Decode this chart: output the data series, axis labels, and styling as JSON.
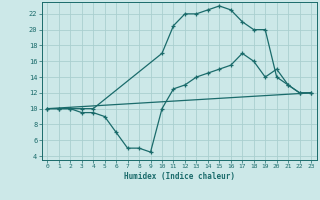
{
  "title": "",
  "xlabel": "Humidex (Indice chaleur)",
  "bg_color": "#cce8e8",
  "grid_color": "#aacfcf",
  "line_color": "#1a6b6b",
  "xlim": [
    -0.5,
    23.5
  ],
  "ylim": [
    3.5,
    23.5
  ],
  "xticks": [
    0,
    1,
    2,
    3,
    4,
    5,
    6,
    7,
    8,
    9,
    10,
    11,
    12,
    13,
    14,
    15,
    16,
    17,
    18,
    19,
    20,
    21,
    22,
    23
  ],
  "yticks": [
    4,
    6,
    8,
    10,
    12,
    14,
    16,
    18,
    20,
    22
  ],
  "line1_x": [
    0,
    1,
    2,
    3,
    4,
    10,
    11,
    12,
    13,
    14,
    15,
    16,
    17,
    18,
    19,
    20,
    21,
    22,
    23
  ],
  "line1_y": [
    10,
    10,
    10,
    10,
    10,
    17,
    20.5,
    22,
    22,
    22.5,
    23,
    22.5,
    21,
    20,
    20,
    14,
    13,
    12,
    12
  ],
  "line2_x": [
    0,
    23
  ],
  "line2_y": [
    10,
    12
  ],
  "line3_x": [
    0,
    1,
    2,
    3,
    4,
    5,
    6,
    7,
    8,
    9,
    10,
    11,
    12,
    13,
    14,
    15,
    16,
    17,
    18,
    19,
    20,
    21,
    22,
    23
  ],
  "line3_y": [
    10,
    10,
    10,
    9.5,
    9.5,
    9,
    7,
    5,
    5,
    4.5,
    10,
    12.5,
    13,
    14,
    14.5,
    15,
    15.5,
    17,
    16,
    14,
    15,
    13,
    12,
    12
  ]
}
